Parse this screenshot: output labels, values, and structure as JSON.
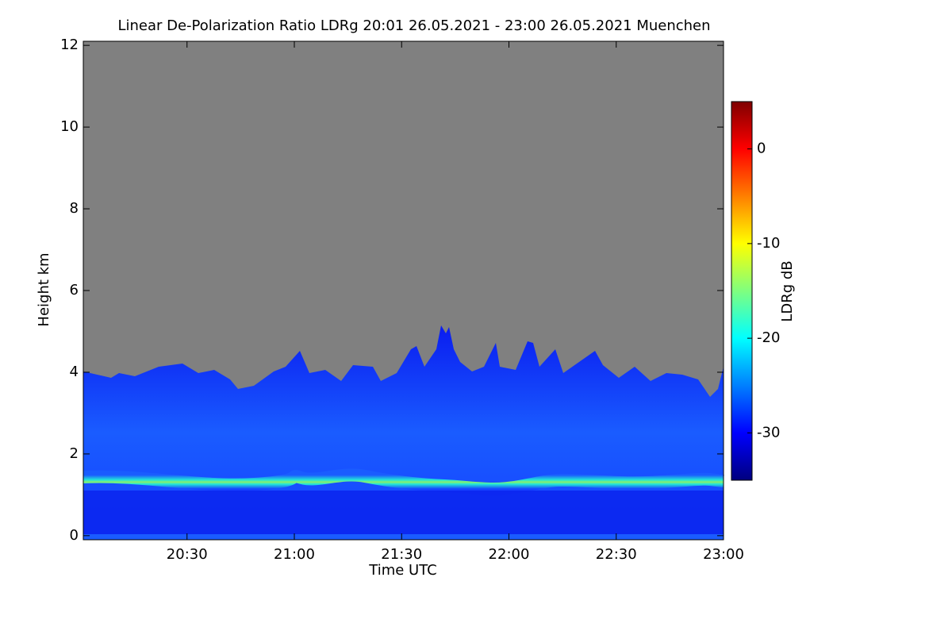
{
  "chart_data": {
    "type": "heatmap",
    "title": "Linear De-Polarization Ratio LDRg   20:01 26.05.2021 - 23:00 26.05.2021 Muenchen",
    "x_label": "Time UTC",
    "y_label": "Height km",
    "colorbar_label": "LDRg dB",
    "xlim": [
      "20:01",
      "23:00"
    ],
    "xticks": [
      "20:30",
      "21:00",
      "21:30",
      "22:00",
      "22:30",
      "23:00"
    ],
    "ylim": [
      -0.1,
      12.1
    ],
    "yticks": [
      0,
      2,
      4,
      6,
      8,
      10,
      12
    ],
    "zlim": [
      -35,
      5
    ],
    "zticks": [
      -30,
      -20,
      -10,
      0
    ],
    "colormap": [
      "#00007f",
      "#0000ff",
      "#007fff",
      "#00ffff",
      "#7fff7f",
      "#ffff00",
      "#ff7f00",
      "#ff0000",
      "#7f0000"
    ]
  }
}
